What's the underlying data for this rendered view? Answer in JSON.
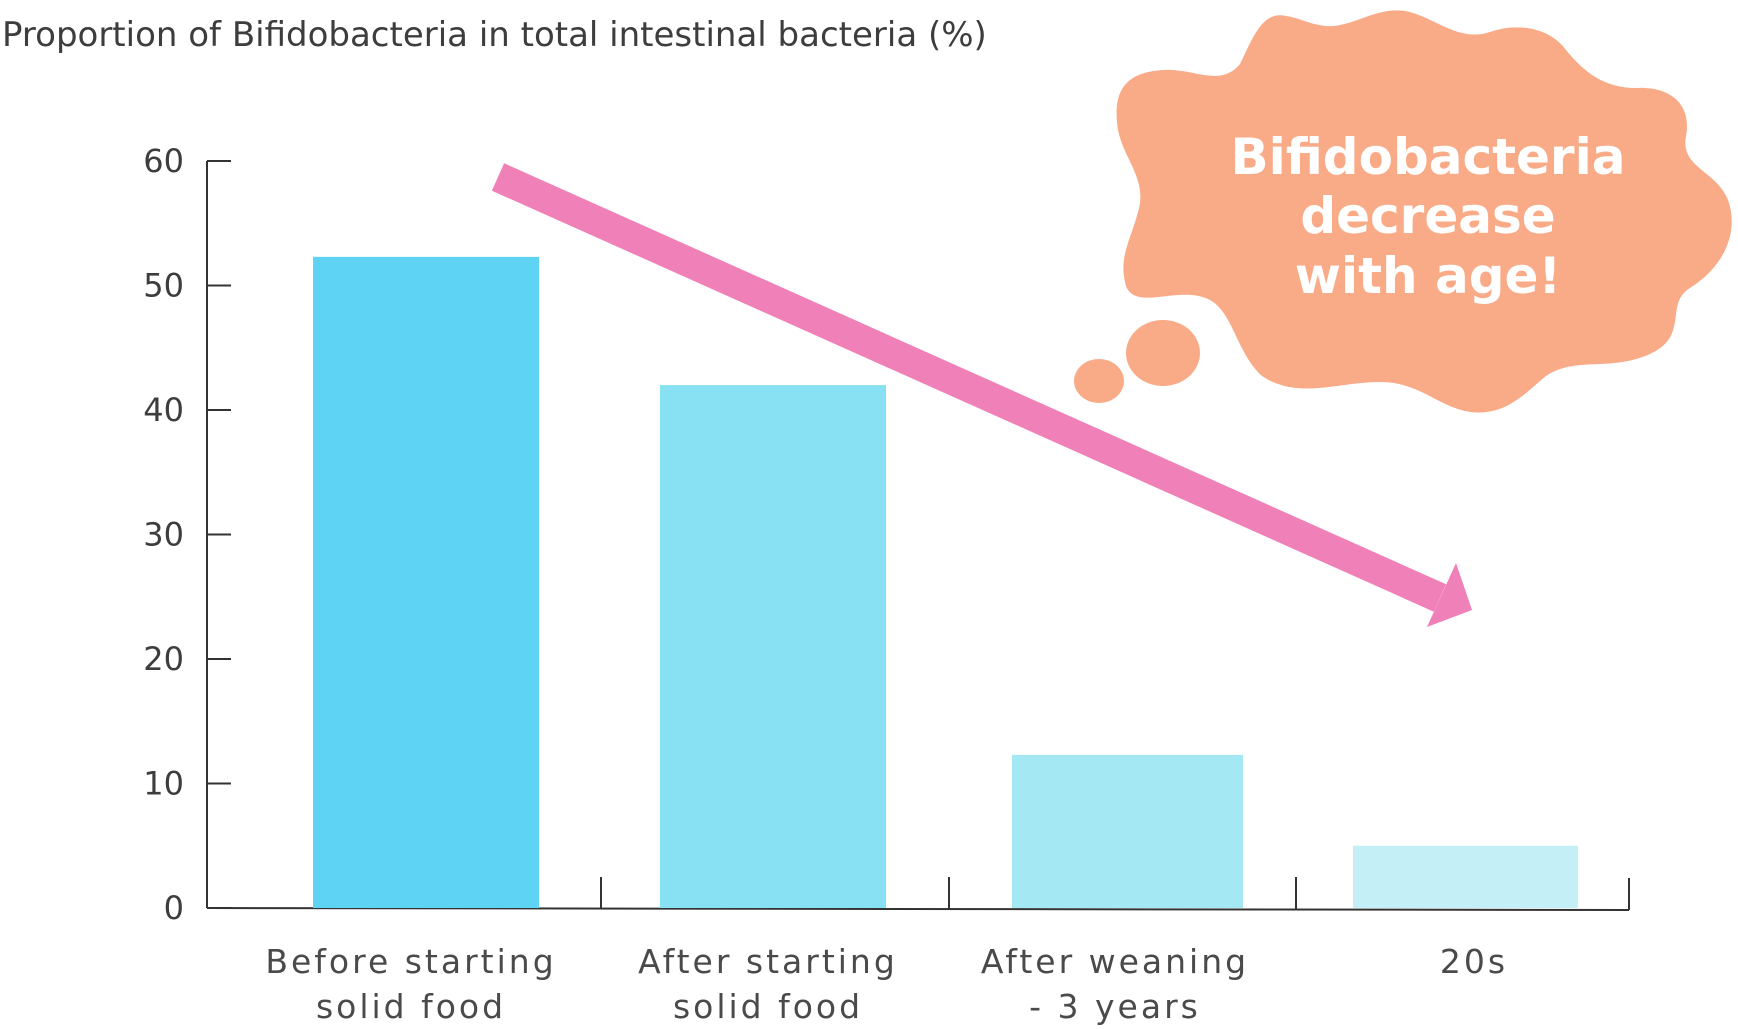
{
  "chart_data": {
    "type": "bar",
    "title": "Proportion of Bifidobacteria in total intestinal bacteria (%)",
    "categories": [
      [
        "Before starting",
        "solid food"
      ],
      [
        "After starting",
        "solid food"
      ],
      [
        "After weaning",
        "- 3 years"
      ],
      [
        "20s"
      ]
    ],
    "values": [
      52.3,
      42,
      12.3,
      5
    ],
    "ylim": [
      0,
      60
    ],
    "yticks": [
      "0",
      "10",
      "20",
      "30",
      "40",
      "50",
      "60"
    ],
    "grid": false,
    "bar_colors": [
      "#5fd3f3",
      "#87e1f2",
      "#a4e8f4",
      "#c4eff7"
    ],
    "arrow_color": "#f080b8",
    "callout": {
      "lines": [
        "Bifidobacteria",
        "decrease",
        "with age!"
      ],
      "color": "#f9ab88"
    }
  }
}
